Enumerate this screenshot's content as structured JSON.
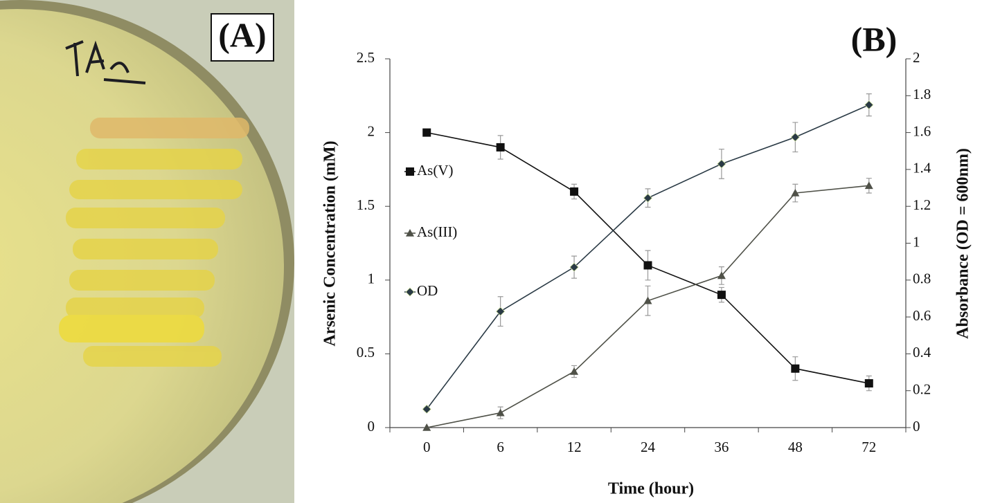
{
  "panel_labels": [
    "(A)",
    "(B)"
  ],
  "chart_data": {
    "type": "line",
    "x_label": "Time (hour)",
    "y_label": "Arsenic Concentration (mM)",
    "y2_label": "Absorbance (OD = 600nm)",
    "categories": [
      "0",
      "6",
      "12",
      "24",
      "36",
      "48",
      "72"
    ],
    "ylim": [
      0,
      2.5
    ],
    "yticks": [
      0,
      0.5,
      1,
      1.5,
      2,
      2.5
    ],
    "y2lim": [
      0,
      2
    ],
    "y2ticks": [
      0,
      0.2,
      0.4,
      0.6,
      0.8,
      1,
      1.2,
      1.4,
      1.6,
      1.8,
      2
    ],
    "legend": "left",
    "series": [
      {
        "name": "As(V)",
        "color": "#111111",
        "marker": "square",
        "values": [
          2,
          1.9,
          1.6,
          1.1,
          0.9,
          0.4,
          0.3
        ],
        "errors": [
          0,
          0.08,
          0.05,
          0.1,
          0.05,
          0.08,
          0.05
        ]
      },
      {
        "name": "As(III)",
        "color": "#4f5148",
        "marker": "triangle",
        "values": [
          0,
          0.1,
          0.38,
          0.86,
          1.03,
          1.59,
          1.64
        ],
        "errors": [
          0,
          0.04,
          0.04,
          0.1,
          0.06,
          0.06,
          0.05
        ]
      },
      {
        "name": "OD",
        "color": "#2a3a45",
        "marker": "diamond",
        "axis": "y2",
        "values": [
          0.1,
          0.63,
          0.87,
          1.245,
          1.43,
          1.575,
          1.75
        ],
        "errors": [
          0.01,
          0.08,
          0.06,
          0.05,
          0.08,
          0.08,
          0.06
        ]
      }
    ]
  }
}
